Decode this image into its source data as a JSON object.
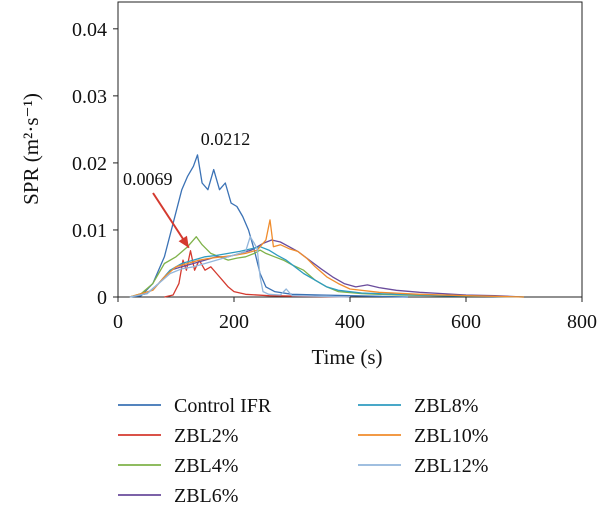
{
  "chart_data": {
    "type": "line",
    "xlabel": "Time (s)",
    "ylabel": "SPR (m²·s⁻¹)",
    "xlim": [
      0,
      800
    ],
    "ylim": [
      0,
      0.044
    ],
    "x_ticks": [
      0,
      200,
      400,
      600,
      800
    ],
    "x_tick_labels": [
      "0",
      "200",
      "400",
      "600",
      "800"
    ],
    "y_ticks": [
      0,
      0.01,
      0.02,
      0.03,
      0.04
    ],
    "y_tick_labels": [
      "0",
      "0.01",
      "0.02",
      "0.03",
      "0.04"
    ],
    "grid": false,
    "legend_position": "bottom",
    "annotations": [
      {
        "text": "0.0212",
        "x": 137,
        "y": 0.0212
      },
      {
        "text": "0.0069",
        "x": 110,
        "y": 0.0069,
        "arrow": true,
        "color": "#d43a2f"
      }
    ],
    "series": [
      {
        "name": "Control IFR",
        "color": "#3b72b5",
        "points": [
          [
            20,
            0
          ],
          [
            40,
            0.0002
          ],
          [
            60,
            0.002
          ],
          [
            80,
            0.006
          ],
          [
            95,
            0.011
          ],
          [
            110,
            0.016
          ],
          [
            120,
            0.018
          ],
          [
            130,
            0.0195
          ],
          [
            137,
            0.0212
          ],
          [
            145,
            0.017
          ],
          [
            155,
            0.016
          ],
          [
            165,
            0.019
          ],
          [
            175,
            0.016
          ],
          [
            185,
            0.017
          ],
          [
            195,
            0.014
          ],
          [
            205,
            0.0135
          ],
          [
            215,
            0.012
          ],
          [
            225,
            0.01
          ],
          [
            235,
            0.007
          ],
          [
            245,
            0.0035
          ],
          [
            255,
            0.0015
          ],
          [
            270,
            0.0008
          ],
          [
            300,
            0.0004
          ],
          [
            350,
            0.0003
          ],
          [
            400,
            0.0002
          ],
          [
            450,
            0.0001
          ],
          [
            500,
            0
          ]
        ]
      },
      {
        "name": "ZBL2%",
        "color": "#d43a2f",
        "points": [
          [
            80,
            0
          ],
          [
            95,
            0.0003
          ],
          [
            105,
            0.002
          ],
          [
            112,
            0.0055
          ],
          [
            118,
            0.004
          ],
          [
            125,
            0.0069
          ],
          [
            132,
            0.004
          ],
          [
            140,
            0.0055
          ],
          [
            150,
            0.004
          ],
          [
            160,
            0.0045
          ],
          [
            170,
            0.0035
          ],
          [
            180,
            0.0025
          ],
          [
            190,
            0.0015
          ],
          [
            200,
            0.0008
          ],
          [
            220,
            0.0004
          ],
          [
            260,
            0.0002
          ],
          [
            320,
            0.0001
          ],
          [
            400,
            0
          ]
        ]
      },
      {
        "name": "ZBL4%",
        "color": "#7fb24a",
        "points": [
          [
            20,
            0
          ],
          [
            40,
            0.0005
          ],
          [
            60,
            0.002
          ],
          [
            80,
            0.005
          ],
          [
            100,
            0.006
          ],
          [
            120,
            0.0075
          ],
          [
            135,
            0.009
          ],
          [
            145,
            0.0078
          ],
          [
            160,
            0.0065
          ],
          [
            175,
            0.006
          ],
          [
            190,
            0.0055
          ],
          [
            205,
            0.0058
          ],
          [
            220,
            0.006
          ],
          [
            235,
            0.0065
          ],
          [
            245,
            0.007
          ],
          [
            255,
            0.0065
          ],
          [
            270,
            0.006
          ],
          [
            285,
            0.0055
          ],
          [
            300,
            0.0048
          ],
          [
            320,
            0.004
          ],
          [
            340,
            0.0025
          ],
          [
            360,
            0.0015
          ],
          [
            380,
            0.0008
          ],
          [
            420,
            0.0005
          ],
          [
            480,
            0.0003
          ],
          [
            560,
            0.0002
          ],
          [
            650,
            0.0001
          ],
          [
            700,
            0
          ]
        ]
      },
      {
        "name": "ZBL6%",
        "color": "#6a4c9c",
        "points": [
          [
            20,
            0
          ],
          [
            50,
            0.0005
          ],
          [
            70,
            0.002
          ],
          [
            90,
            0.004
          ],
          [
            110,
            0.0045
          ],
          [
            130,
            0.005
          ],
          [
            150,
            0.0055
          ],
          [
            170,
            0.006
          ],
          [
            190,
            0.006
          ],
          [
            210,
            0.0065
          ],
          [
            230,
            0.007
          ],
          [
            250,
            0.008
          ],
          [
            265,
            0.0085
          ],
          [
            280,
            0.0082
          ],
          [
            295,
            0.0075
          ],
          [
            310,
            0.0068
          ],
          [
            330,
            0.0055
          ],
          [
            350,
            0.0042
          ],
          [
            370,
            0.003
          ],
          [
            390,
            0.002
          ],
          [
            410,
            0.0015
          ],
          [
            430,
            0.0018
          ],
          [
            450,
            0.0014
          ],
          [
            480,
            0.001
          ],
          [
            520,
            0.0007
          ],
          [
            560,
            0.0005
          ],
          [
            600,
            0.0003
          ],
          [
            650,
            0.0002
          ],
          [
            700,
            0
          ]
        ]
      },
      {
        "name": "ZBL8%",
        "color": "#2f9cc0",
        "points": [
          [
            20,
            0
          ],
          [
            50,
            0.0005
          ],
          [
            70,
            0.002
          ],
          [
            90,
            0.004
          ],
          [
            110,
            0.005
          ],
          [
            130,
            0.0055
          ],
          [
            150,
            0.006
          ],
          [
            170,
            0.0062
          ],
          [
            190,
            0.0065
          ],
          [
            210,
            0.0068
          ],
          [
            230,
            0.0072
          ],
          [
            245,
            0.0075
          ],
          [
            260,
            0.007
          ],
          [
            275,
            0.0062
          ],
          [
            290,
            0.0055
          ],
          [
            305,
            0.0045
          ],
          [
            320,
            0.0035
          ],
          [
            340,
            0.0025
          ],
          [
            360,
            0.0015
          ],
          [
            380,
            0.001
          ],
          [
            420,
            0.0006
          ],
          [
            480,
            0.0004
          ],
          [
            560,
            0.0002
          ],
          [
            700,
            0
          ]
        ]
      },
      {
        "name": "ZBL10%",
        "color": "#f08c2c",
        "points": [
          [
            20,
            0
          ],
          [
            60,
            0.001
          ],
          [
            80,
            0.003
          ],
          [
            100,
            0.0045
          ],
          [
            120,
            0.005
          ],
          [
            140,
            0.0055
          ],
          [
            160,
            0.0058
          ],
          [
            180,
            0.006
          ],
          [
            200,
            0.0062
          ],
          [
            220,
            0.0065
          ],
          [
            240,
            0.007
          ],
          [
            255,
            0.0085
          ],
          [
            262,
            0.0115
          ],
          [
            268,
            0.0075
          ],
          [
            280,
            0.0078
          ],
          [
            295,
            0.0072
          ],
          [
            310,
            0.0068
          ],
          [
            325,
            0.0058
          ],
          [
            340,
            0.0045
          ],
          [
            360,
            0.003
          ],
          [
            380,
            0.002
          ],
          [
            400,
            0.0012
          ],
          [
            450,
            0.0007
          ],
          [
            520,
            0.0004
          ],
          [
            600,
            0.0002
          ],
          [
            700,
            0
          ]
        ]
      },
      {
        "name": "ZBL12%",
        "color": "#93b6db",
        "points": [
          [
            20,
            0
          ],
          [
            50,
            0.0005
          ],
          [
            70,
            0.002
          ],
          [
            90,
            0.0035
          ],
          [
            110,
            0.0042
          ],
          [
            130,
            0.0045
          ],
          [
            150,
            0.005
          ],
          [
            170,
            0.0055
          ],
          [
            190,
            0.006
          ],
          [
            210,
            0.0065
          ],
          [
            220,
            0.0068
          ],
          [
            228,
            0.009
          ],
          [
            235,
            0.008
          ],
          [
            240,
            0.0072
          ],
          [
            245,
            0.003
          ],
          [
            250,
            0.0008
          ],
          [
            260,
            0.0004
          ],
          [
            280,
            0.0003
          ],
          [
            290,
            0.0012
          ],
          [
            300,
            0.0002
          ],
          [
            350,
            0.0001
          ],
          [
            400,
            0
          ]
        ]
      }
    ]
  }
}
